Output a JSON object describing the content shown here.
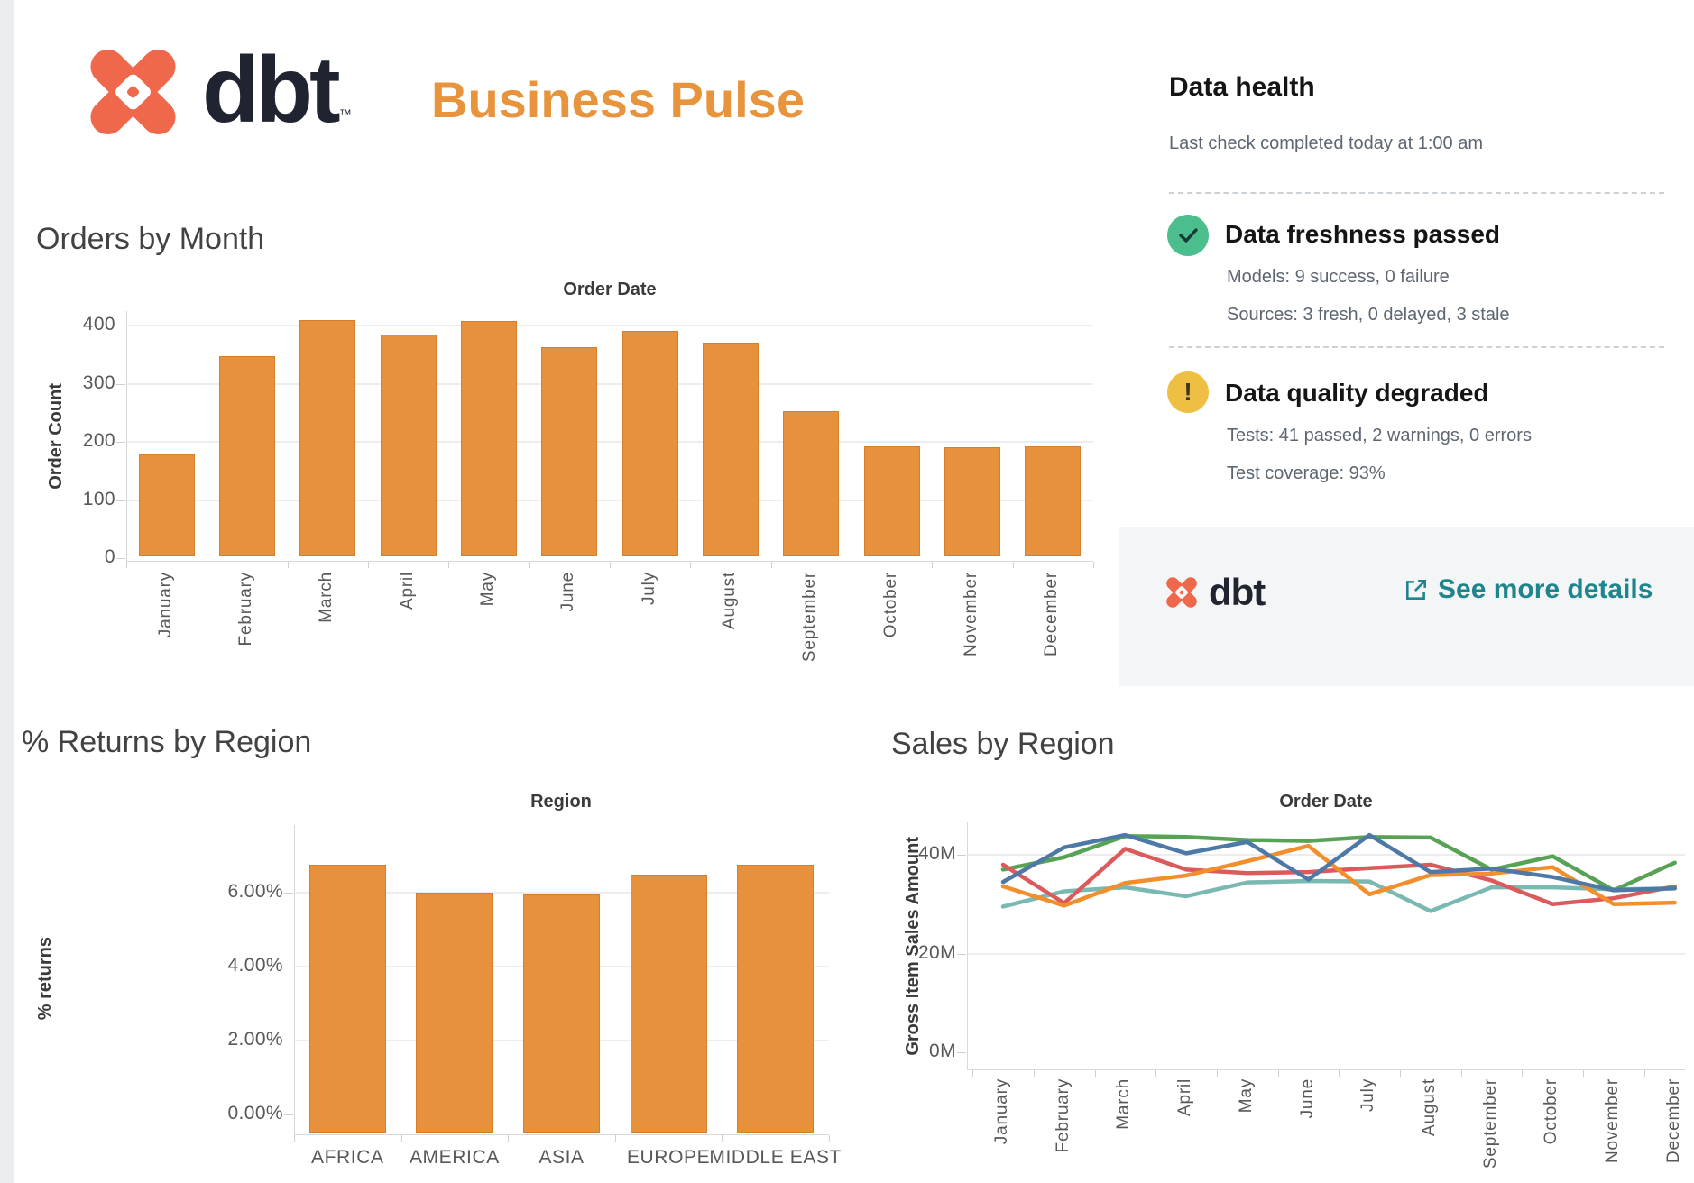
{
  "header": {
    "logo_text": "dbt",
    "trademark": "™",
    "title": "Business Pulse"
  },
  "data_health": {
    "title": "Data health",
    "subtitle": "Last check completed today at 1:00 am",
    "freshness": {
      "status": "Data freshness passed",
      "line1": "Models: 9 success, 0 failure",
      "line2": "Sources: 3 fresh, 0 delayed, 3 stale",
      "icon_color": "#4cbd8c"
    },
    "quality": {
      "status": "Data quality degraded",
      "line1": "Tests: 41 passed, 2 warnings, 0 errors",
      "line2": "Test coverage: 93%",
      "icon_color": "#efbf43"
    },
    "footer": {
      "logo_text": "dbt",
      "link_label": "See more details"
    }
  },
  "chart_data": [
    {
      "id": "orders_by_month",
      "type": "bar",
      "title": "Orders by Month",
      "axis_title": "Order Date",
      "ylabel": "Order Count",
      "categories": [
        "January",
        "February",
        "March",
        "April",
        "May",
        "June",
        "July",
        "August",
        "September",
        "October",
        "November",
        "December"
      ],
      "values": [
        178,
        348,
        410,
        384,
        407,
        363,
        391,
        371,
        253,
        192,
        191,
        192
      ],
      "yticks": [
        0,
        100,
        200,
        300,
        400
      ],
      "ylim": [
        0,
        430
      ],
      "grid": true,
      "bar_color": "#e8913c"
    },
    {
      "id": "returns_by_region",
      "type": "bar",
      "title": "% Returns by Region",
      "axis_title": "Region",
      "ylabel": "% returns",
      "categories": [
        "AFRICA",
        "AMERICA",
        "ASIA",
        "EUROPE",
        "MIDDLE EAST"
      ],
      "values": [
        6.75,
        6.0,
        5.95,
        6.5,
        6.75
      ],
      "yticks": [
        0,
        2,
        4,
        6
      ],
      "ytick_labels": [
        "0.00%",
        "2.00%",
        "4.00%",
        "6.00%"
      ],
      "ylim": [
        0,
        7.3
      ],
      "grid": true,
      "bar_color": "#e8913c"
    },
    {
      "id": "sales_by_region",
      "type": "line",
      "title": "Sales by Region",
      "axis_title": "Order Date",
      "ylabel": "Gross Item Sales Amount",
      "x": [
        "January",
        "February",
        "March",
        "April",
        "May",
        "June",
        "July",
        "August",
        "September",
        "October",
        "November",
        "December"
      ],
      "yticks": [
        0,
        20,
        40
      ],
      "ytick_labels": [
        "0M",
        "20M",
        "40M"
      ],
      "ylim": [
        0,
        46
      ],
      "unit": "M",
      "legend": "none",
      "series": [
        {
          "name": "teal",
          "color": "#7ab8b2",
          "values": [
            29.5,
            32.6,
            33.4,
            31.6,
            34.4,
            34.7,
            34.6,
            28.6,
            33.4,
            33.4,
            33.0,
            33.2
          ]
        },
        {
          "name": "green",
          "color": "#57a255",
          "values": [
            37.0,
            39.5,
            43.8,
            43.6,
            43.0,
            42.8,
            43.6,
            43.5,
            37.0,
            39.7,
            32.8,
            38.4
          ]
        },
        {
          "name": "red",
          "color": "#dc5a5c",
          "values": [
            38.0,
            30.2,
            41.2,
            37.0,
            36.3,
            36.5,
            37.3,
            38.0,
            34.8,
            30.0,
            31.2,
            33.6
          ]
        },
        {
          "name": "orange",
          "color": "#f28e2b",
          "values": [
            33.6,
            29.7,
            34.3,
            35.8,
            38.7,
            41.8,
            32.0,
            35.9,
            36.2,
            37.5,
            30.0,
            30.3
          ]
        },
        {
          "name": "blue",
          "color": "#4e79a7",
          "values": [
            34.5,
            41.5,
            44.0,
            40.3,
            42.6,
            35.0,
            44.0,
            36.5,
            37.2,
            35.5,
            32.8,
            33.2
          ]
        }
      ]
    }
  ]
}
